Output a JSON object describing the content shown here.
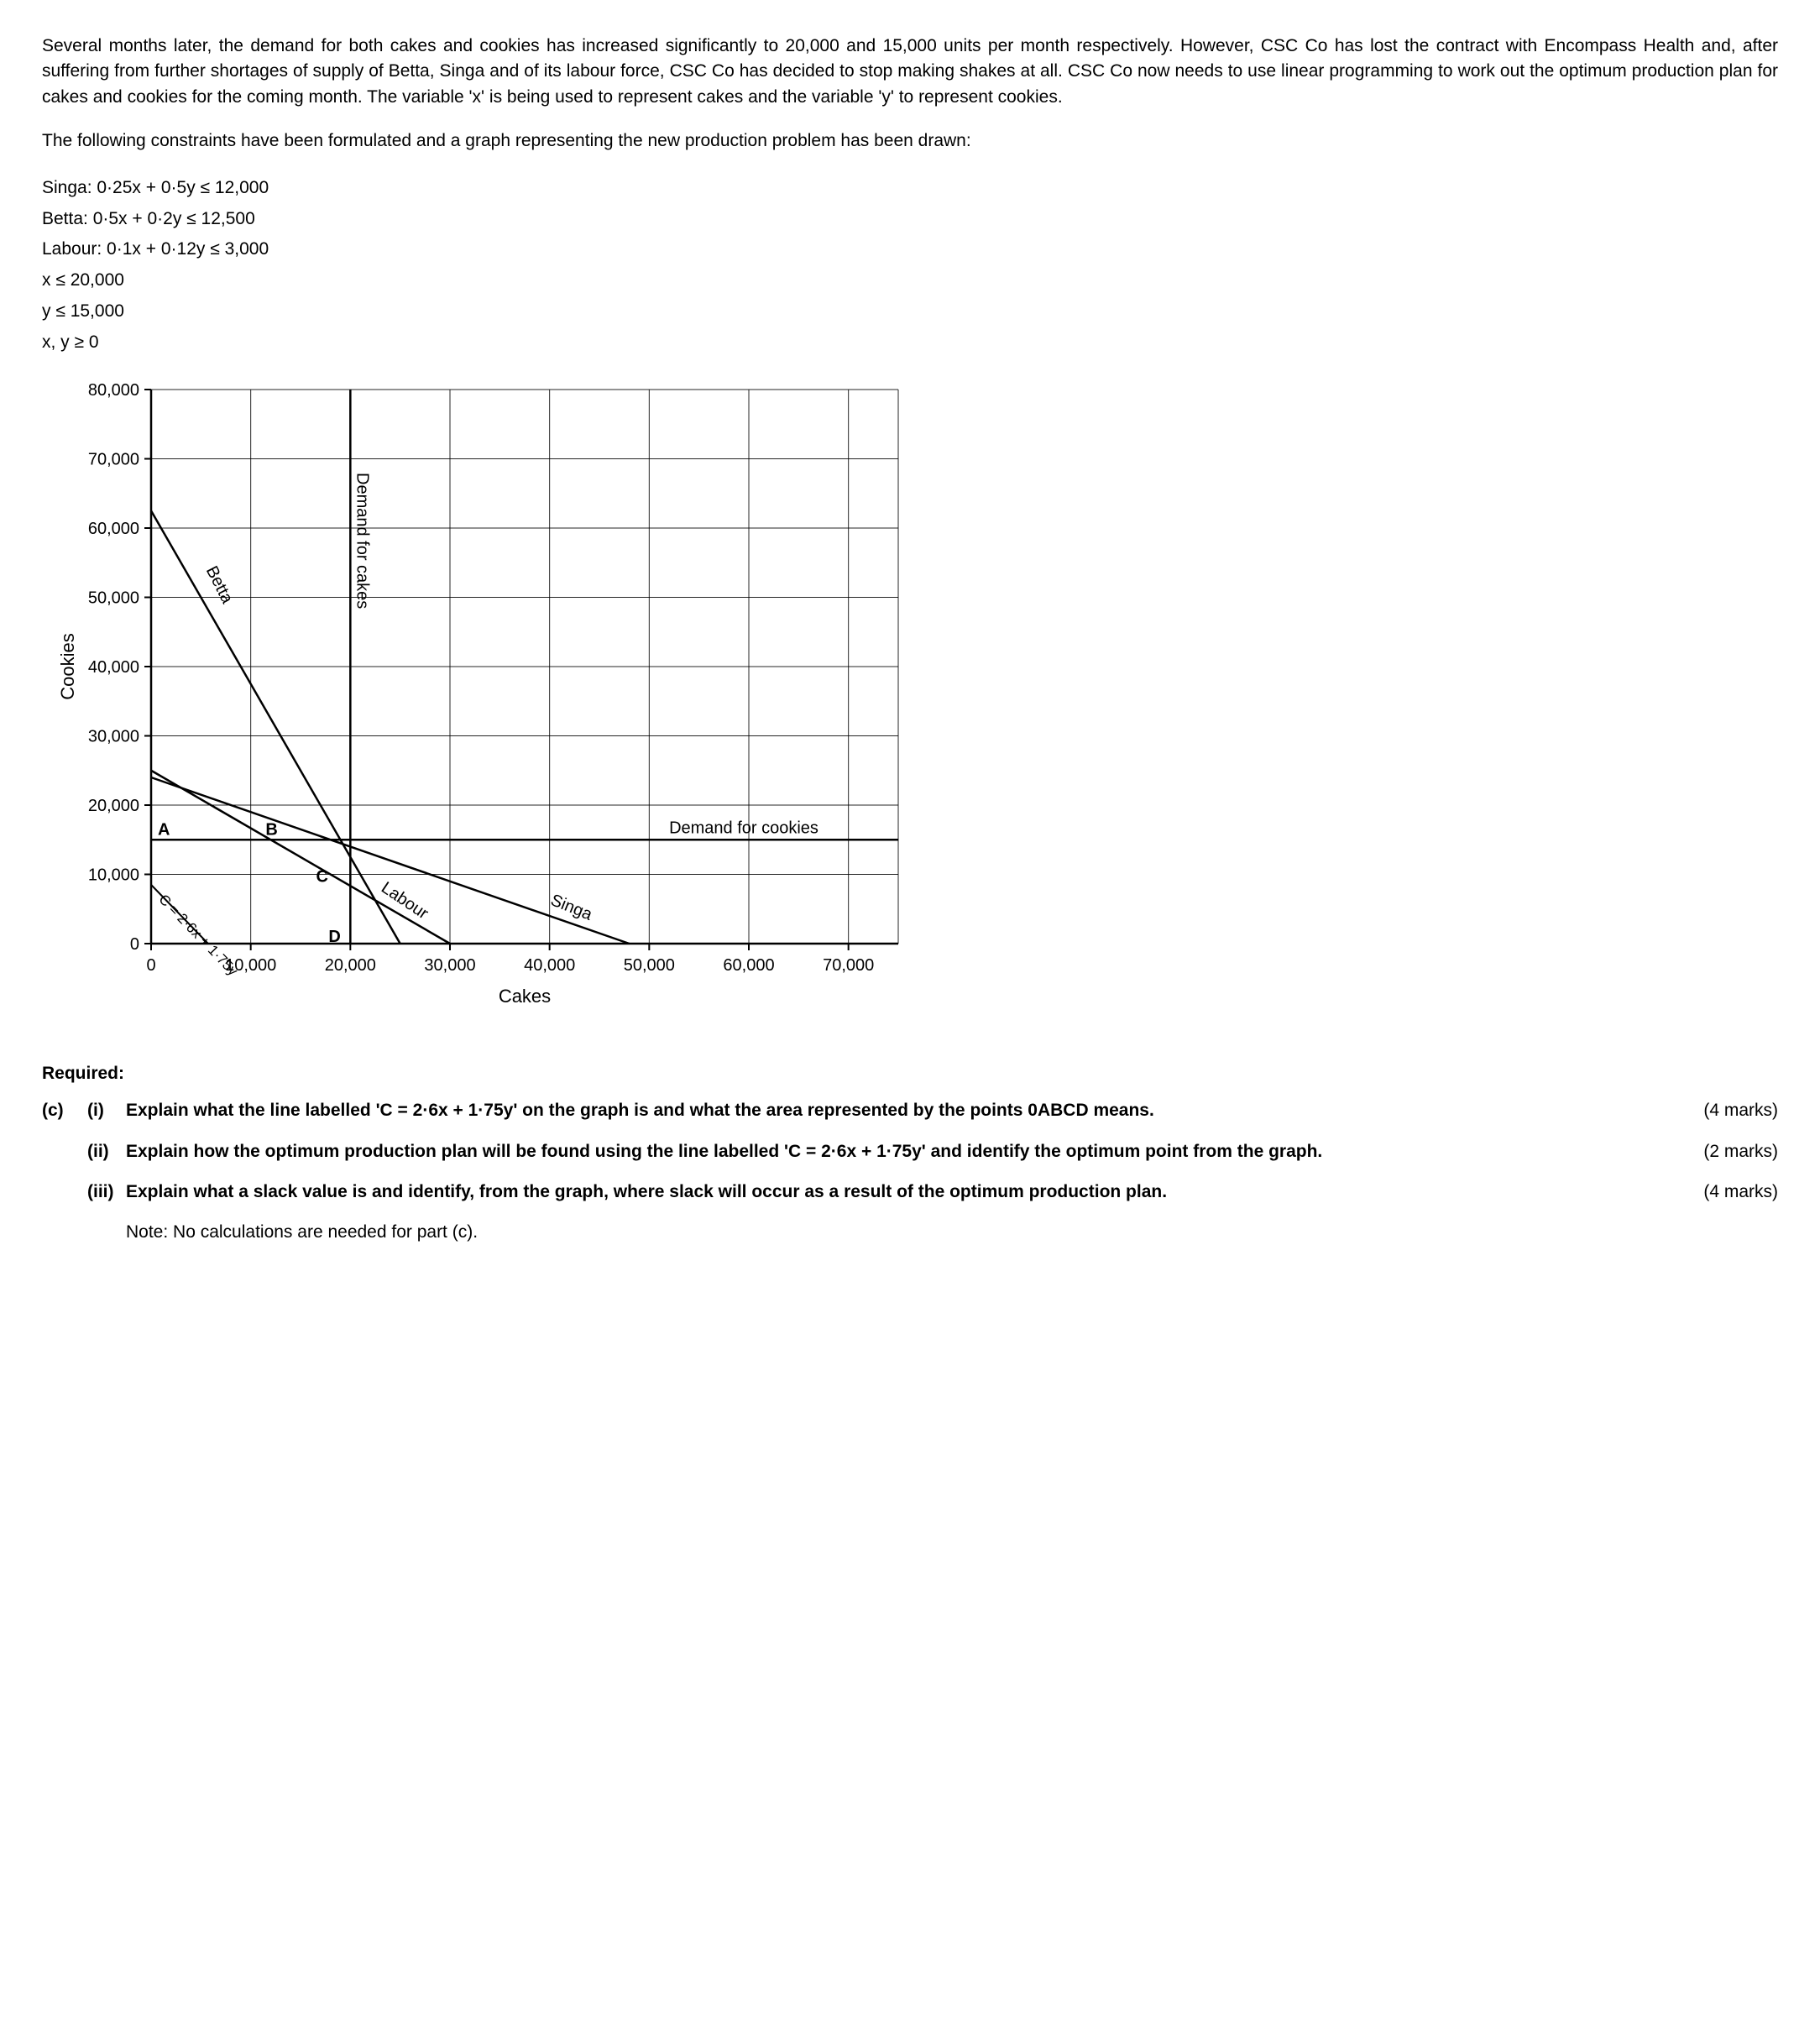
{
  "paragraphs": {
    "p1": "Several months later, the demand for both cakes and cookies has increased significantly to 20,000 and 15,000 units per month respectively. However, CSC Co has lost the contract with Encompass Health and, after suffering from further shortages of supply of Betta, Singa and of its labour force, CSC Co has decided to stop making shakes at all. CSC Co now needs to use linear programming to work out the optimum production plan for cakes and cookies for the coming month. The variable 'x' is being used to represent cakes and the variable 'y' to represent cookies.",
    "p2": "The following constraints have been formulated and a graph representing the new production problem has been drawn:"
  },
  "constraints": {
    "l1": "Singa: 0·25x + 0·5y ≤ 12,000",
    "l2": "Betta: 0·5x + 0·2y ≤ 12,500",
    "l3": "Labour: 0·1x + 0·12y ≤ 3,000",
    "l4": "x ≤ 20,000",
    "l5": "y ≤ 15,000",
    "l6": "x, y ≥ 0"
  },
  "chart": {
    "type": "line",
    "background_color": "#ffffff",
    "axis_color": "#000000",
    "grid_color": "#000000",
    "line_width_axis": 2.5,
    "line_width_grid": 1,
    "line_width_constraint": 2.5,
    "xlabel": "Cakes",
    "ylabel": "Cookies",
    "label_fontsize": 22,
    "tick_fontsize": 20,
    "xlim": [
      0,
      75000
    ],
    "ylim": [
      0,
      80000
    ],
    "xticks": [
      0,
      10000,
      20000,
      30000,
      40000,
      50000,
      60000,
      70000
    ],
    "xtick_labels": [
      "0",
      "10,000",
      "20,000",
      "30,000",
      "40,000",
      "50,000",
      "60,000",
      "70,000"
    ],
    "yticks": [
      0,
      10000,
      20000,
      30000,
      40000,
      50000,
      60000,
      70000,
      80000
    ],
    "ytick_labels": [
      "0",
      "10,000",
      "20,000",
      "30,000",
      "40,000",
      "50,000",
      "60,000",
      "70,000",
      "80,000"
    ],
    "lines": {
      "betta": {
        "p1": [
          0,
          62500
        ],
        "p2": [
          25000,
          0
        ],
        "label": "Betta"
      },
      "singa": {
        "p1": [
          0,
          24000
        ],
        "p2": [
          48000,
          0
        ],
        "label": "Singa"
      },
      "labour": {
        "p1": [
          0,
          25000
        ],
        "p2": [
          30000,
          0
        ],
        "label": "Labour"
      },
      "demand_cakes": {
        "p1": [
          20000,
          0
        ],
        "p2": [
          20000,
          80000
        ],
        "label": "Demand for cakes",
        "vertical": true
      },
      "demand_cookies": {
        "p1": [
          0,
          15000
        ],
        "p2": [
          75000,
          15000
        ],
        "label": "Demand for cookies"
      },
      "iso": {
        "p1": [
          0,
          8500
        ],
        "p2": [
          5721,
          0
        ],
        "label": "C = 2·6x + 1·75y"
      }
    },
    "points": {
      "A": [
        0,
        15000
      ],
      "B": [
        12000,
        15000
      ],
      "C": [
        18750,
        9375
      ],
      "D": [
        20000,
        0
      ]
    }
  },
  "required": {
    "heading": "Required:",
    "part_letter": "(c)",
    "i": {
      "num": "(i)",
      "text": "Explain what the line labelled 'C = 2·6x + 1·75y' on the graph is and what the area represented by the points 0ABCD means.",
      "marks": "(4 marks)"
    },
    "ii": {
      "num": "(ii)",
      "text": "Explain how the optimum production plan will be found using the line labelled 'C = 2·6x + 1·75y' and identify the optimum point from the graph.",
      "marks": "(2 marks)"
    },
    "iii": {
      "num": "(iii)",
      "text": "Explain what a slack value is and identify, from the graph, where slack will occur as a result of the optimum production plan.",
      "marks": "(4 marks)"
    },
    "note": "Note: No calculations are needed for part (c)."
  }
}
